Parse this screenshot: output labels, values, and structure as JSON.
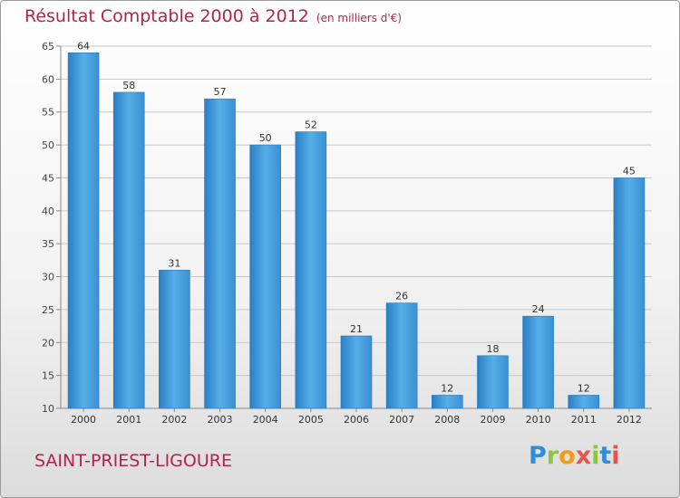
{
  "chart_data": {
    "type": "bar",
    "title": "Résultat Comptable 2000 à 2012",
    "subtitle": "(en milliers d'€)",
    "xlabel": "",
    "ylabel": "",
    "categories": [
      "2000",
      "2001",
      "2002",
      "2003",
      "2004",
      "2005",
      "2006",
      "2007",
      "2008",
      "2009",
      "2010",
      "2011",
      "2012"
    ],
    "values": [
      64,
      58,
      31,
      57,
      50,
      52,
      21,
      26,
      12,
      18,
      24,
      12,
      45
    ],
    "ylim": [
      10,
      65
    ],
    "yticks": [
      10,
      15,
      20,
      25,
      30,
      35,
      40,
      45,
      50,
      55,
      60,
      65
    ],
    "grid": true,
    "legend": "none",
    "bar_color": "#3a95d8",
    "title_color": "#b0264a"
  },
  "footer": {
    "place": "SAINT-PRIEST-LIGOURE",
    "logo_letters": [
      {
        "ch": "P",
        "color": "#2e8fd6"
      },
      {
        "ch": "r",
        "color": "#8cc63f"
      },
      {
        "ch": "o",
        "color": "#f39c12"
      },
      {
        "ch": "x",
        "color": "#e2574c"
      },
      {
        "ch": "i",
        "color": "#8cc63f"
      },
      {
        "ch": "t",
        "color": "#2e8fd6"
      },
      {
        "ch": "i",
        "color": "#e2574c"
      }
    ]
  }
}
